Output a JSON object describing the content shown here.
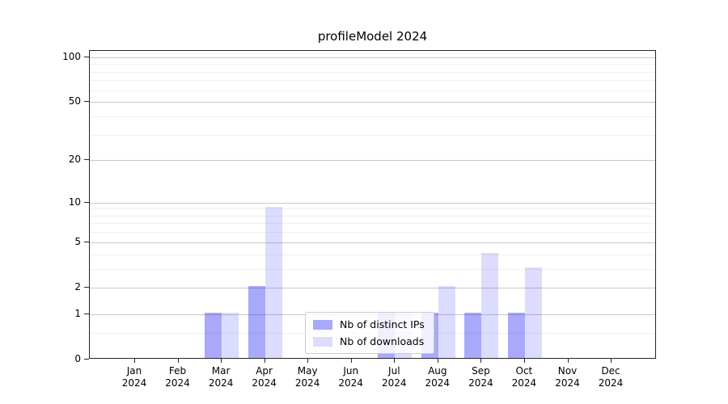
{
  "chart_data": {
    "type": "bar",
    "title": "profileModel 2024",
    "categories": [
      "Jan",
      "Feb",
      "Mar",
      "Apr",
      "May",
      "Jun",
      "Jul",
      "Aug",
      "Sep",
      "Oct",
      "Nov",
      "Dec"
    ],
    "x_year_label": "2024",
    "series": [
      {
        "name": "Nb of distinct IPs",
        "color": "#0a0af5",
        "alpha": 0.35,
        "values": [
          0,
          0,
          1,
          2,
          0,
          0,
          1,
          1,
          1,
          1,
          0,
          0
        ]
      },
      {
        "name": "Nb of downloads",
        "color": "#0a0af5",
        "alpha": 0.14,
        "values": [
          0,
          0,
          1,
          9,
          0,
          0,
          1,
          2,
          4,
          3,
          0,
          0
        ]
      }
    ],
    "yscale": "log1p",
    "ylim": [
      0,
      110
    ],
    "yticks": [
      0,
      1,
      2,
      5,
      10,
      20,
      50,
      100
    ],
    "minor_gridlines": [
      0.5,
      3,
      4,
      6,
      7,
      8,
      9,
      30,
      40,
      60,
      70,
      80,
      90
    ],
    "grid": true,
    "legend_position": "bottom-center",
    "colors": {
      "grid_major": "#c9c9c9",
      "grid_minor": "#efefef",
      "axis": "#262626",
      "legend_border": "#cccccc",
      "background": "#ffffff"
    }
  }
}
